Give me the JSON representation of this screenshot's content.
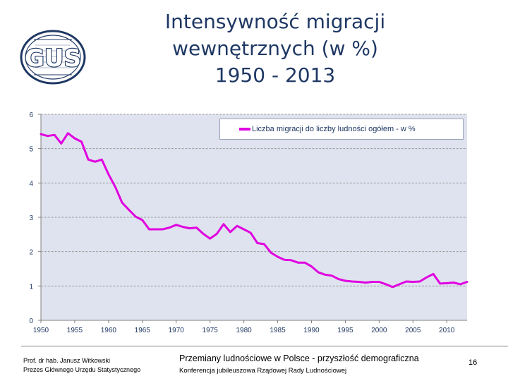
{
  "logo": {
    "text": "GUS"
  },
  "title": {
    "line1": "Intensywność migracji",
    "line2": "wewnętrznych (w %)",
    "line3": "1950 - 2013"
  },
  "colors": {
    "series": "#e000e0",
    "plot_bg": "#dfe3ef",
    "title": "#1f3864",
    "axis_text": "#1f3864"
  },
  "chart_data": {
    "type": "line",
    "title": "",
    "xlabel": "",
    "ylabel": "",
    "xlim": [
      1950,
      2013
    ],
    "ylim": [
      0,
      6
    ],
    "x_ticks": [
      1950,
      1955,
      1960,
      1965,
      1970,
      1975,
      1980,
      1985,
      1990,
      1995,
      2000,
      2005,
      2010
    ],
    "y_ticks": [
      0,
      1,
      2,
      3,
      4,
      5,
      6
    ],
    "grid": "horizontal",
    "legend_position": "top-right",
    "x": [
      1950,
      1951,
      1952,
      1953,
      1954,
      1955,
      1956,
      1957,
      1958,
      1959,
      1960,
      1961,
      1962,
      1963,
      1964,
      1965,
      1966,
      1967,
      1968,
      1969,
      1970,
      1971,
      1972,
      1973,
      1974,
      1975,
      1976,
      1977,
      1978,
      1979,
      1980,
      1981,
      1982,
      1983,
      1984,
      1985,
      1986,
      1987,
      1988,
      1989,
      1990,
      1991,
      1992,
      1993,
      1994,
      1995,
      1996,
      1997,
      1998,
      1999,
      2000,
      2001,
      2002,
      2003,
      2004,
      2005,
      2006,
      2007,
      2008,
      2009,
      2010,
      2011,
      2012,
      2013
    ],
    "series": [
      {
        "name": "Liczba migracji do liczby ludności ogółem - w %",
        "values": [
          5.42,
          5.37,
          5.4,
          5.15,
          5.45,
          5.3,
          5.2,
          4.68,
          4.62,
          4.68,
          4.25,
          3.88,
          3.43,
          3.22,
          3.02,
          2.92,
          2.65,
          2.65,
          2.65,
          2.7,
          2.78,
          2.72,
          2.68,
          2.7,
          2.52,
          2.38,
          2.52,
          2.8,
          2.57,
          2.75,
          2.65,
          2.55,
          2.25,
          2.22,
          1.97,
          1.85,
          1.76,
          1.75,
          1.68,
          1.68,
          1.57,
          1.4,
          1.33,
          1.3,
          1.2,
          1.15,
          1.13,
          1.12,
          1.1,
          1.12,
          1.12,
          1.05,
          0.97,
          1.05,
          1.13,
          1.12,
          1.13,
          1.25,
          1.35,
          1.07,
          1.08,
          1.1,
          1.05,
          1.12
        ]
      }
    ]
  },
  "footer": {
    "author_line1": "Prof. dr hab. Janusz Witkowski",
    "author_line2": "Prezes Głównego Urzędu Statystycznego",
    "main_title": "Przemiany ludnościowe w Polsce -  przyszłość demograficzna",
    "subtitle": "Konferencja jubileuszowa Rządowej Rady Ludnościowej",
    "page_number": "16"
  }
}
